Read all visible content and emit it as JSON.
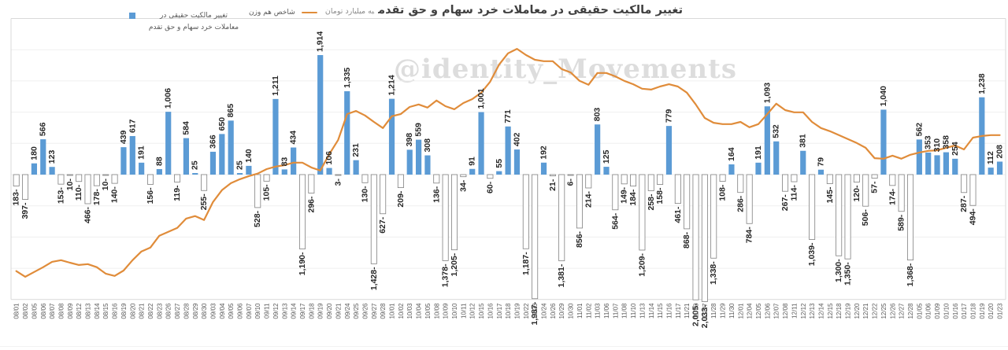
{
  "title": {
    "main": "تغییر مالکیت حقیقی در معاملات خرد سهام و حق تقدم",
    "unit_suffix": "به میلیارد تومان"
  },
  "legend": {
    "bars_label_line1": "تغییر مالکیت حقیقی در",
    "bars_label_line2": "معاملات خرد سهام و حق تقدم",
    "line_label": "شاخص هم وزن"
  },
  "watermark": "@identity_Movements",
  "colors": {
    "bar_positive": "#5B9BD5",
    "bar_negative_fill": "#FFFFFF",
    "bar_negative_border": "#808080",
    "line": "#E08C3A",
    "grid": "#EFEFEF",
    "axis_border": "#D9D9D9",
    "bar_label": "#262626",
    "date_label": "#595959"
  },
  "chart_data": {
    "type": "bar",
    "title": "تغییر مالکیت حقیقی در معاملات خرد سهام و حق تقدم به میلیارد تومان",
    "xlabel": "",
    "ylabel": "میلیارد تومان",
    "grid": true,
    "legend_position": "top-left",
    "value_axis": {
      "gridline_interval": 500,
      "min": -2000,
      "max": 2500,
      "tick_labels_visible": false
    },
    "categories": [
      "08/01",
      "08/02",
      "08/05",
      "08/06",
      "08/07",
      "08/08",
      "08/09",
      "08/12",
      "08/13",
      "08/14",
      "08/15",
      "08/16",
      "08/19",
      "08/20",
      "08/21",
      "08/22",
      "08/23",
      "08/26",
      "08/27",
      "08/28",
      "08/29",
      "08/30",
      "09/03",
      "09/04",
      "09/05",
      "09/06",
      "09/07",
      "09/10",
      "09/11",
      "09/12",
      "09/13",
      "09/14",
      "09/17",
      "09/18",
      "09/19",
      "09/20",
      "09/21",
      "09/24",
      "09/25",
      "09/26",
      "09/27",
      "09/28",
      "10/01",
      "10/02",
      "10/03",
      "10/04",
      "10/05",
      "10/08",
      "10/09",
      "10/10",
      "10/11",
      "10/12",
      "10/15",
      "10/16",
      "10/17",
      "10/18",
      "10/19",
      "10/22",
      "10/23",
      "10/24",
      "10/26",
      "10/29",
      "10/30",
      "11/01",
      "11/02",
      "11/03",
      "11/06",
      "11/07",
      "11/08",
      "11/10",
      "11/13",
      "11/14",
      "11/15",
      "11/16",
      "11/17",
      "11/21",
      "11/23",
      "11/27",
      "11/28",
      "11/29",
      "11/30",
      "12/01",
      "12/04",
      "12/05",
      "12/06",
      "12/07",
      "12/08",
      "12/11",
      "12/12",
      "12/13",
      "12/14",
      "12/15",
      "12/18",
      "12/19",
      "12/20",
      "12/21",
      "12/22",
      "12/25",
      "12/26",
      "12/27",
      "12/28",
      "01/05",
      "01/06",
      "01/09",
      "01/10",
      "01/16",
      "01/17",
      "01/18",
      "01/19",
      "01/20",
      "01/23"
    ],
    "series": [
      {
        "name": "تغییر مالکیت حقیقی در معاملات خرد سهام و حق تقدم",
        "type": "bar",
        "values": [
          -183,
          -397,
          180,
          566,
          123,
          -153,
          -10,
          -110,
          -466,
          -178,
          -10,
          -140,
          439,
          617,
          191,
          -156,
          88,
          1006,
          -119,
          584,
          25,
          -255,
          366,
          650,
          865,
          25,
          140,
          -528,
          -105,
          1211,
          83,
          434,
          -1190,
          -296,
          1914,
          106,
          -3,
          1335,
          231,
          -130,
          -1428,
          -627,
          1214,
          -209,
          398,
          559,
          308,
          -136,
          -1378,
          -1205,
          -34,
          91,
          1001,
          -60,
          55,
          771,
          402,
          -1187,
          -1987,
          192,
          -21,
          -1381,
          -6,
          -856,
          -214,
          803,
          125,
          -564,
          -149,
          -184,
          -1209,
          -258,
          -158,
          779,
          -461,
          -868,
          -2005,
          -2033,
          -1338,
          -108,
          164,
          -286,
          -784,
          191,
          1093,
          532,
          -267,
          -114,
          381,
          -1039,
          79,
          -145,
          -1300,
          -1350,
          -120,
          -506,
          -57,
          1040,
          -174,
          -589,
          -1368,
          562,
          353,
          310,
          358,
          254,
          -287,
          -494,
          1238,
          112,
          208
        ]
      },
      {
        "name": "شاخص هم وزن",
        "type": "line",
        "axis": "hidden",
        "normalized_values_pct": [
          10.1,
          8.1,
          9.8,
          11.5,
          13.4,
          14.0,
          13.1,
          12.3,
          12.6,
          11.5,
          9.2,
          8.4,
          10.3,
          14.0,
          17.1,
          18.5,
          22.7,
          24.1,
          25.5,
          28.8,
          29.7,
          28.3,
          34.7,
          38.9,
          41.4,
          42.8,
          43.9,
          44.8,
          46.4,
          47.3,
          47.8,
          48.7,
          48.7,
          47.0,
          45.9,
          51.7,
          56.8,
          66.0,
          67.1,
          65.5,
          63.2,
          61.0,
          65.2,
          66.0,
          68.5,
          69.4,
          68.3,
          70.8,
          68.8,
          67.7,
          69.9,
          71.3,
          73.6,
          77.5,
          83.6,
          87.6,
          89.2,
          87.0,
          85.3,
          84.8,
          84.8,
          82.0,
          80.8,
          77.8,
          76.4,
          80.6,
          80.6,
          79.4,
          77.8,
          76.6,
          75.0,
          74.7,
          75.8,
          76.6,
          75.8,
          73.6,
          69.4,
          64.6,
          62.9,
          62.4,
          62.4,
          63.2,
          61.3,
          62.4,
          66.0,
          69.7,
          67.4,
          66.6,
          66.6,
          63.2,
          61.0,
          59.9,
          58.5,
          57.1,
          55.7,
          54.0,
          50.3,
          50.1,
          51.2,
          50.1,
          51.5,
          52.3,
          52.9,
          53.1,
          54.0,
          54.8,
          53.4,
          57.6,
          58.2,
          58.5,
          58.5
        ]
      }
    ]
  }
}
